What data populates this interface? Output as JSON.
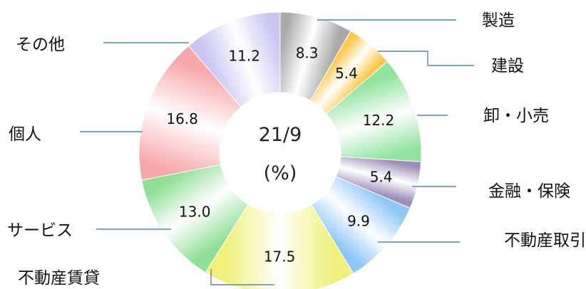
{
  "chart_data": {
    "type": "pie",
    "donut": true,
    "center_label": [
      "21/9",
      "(%)"
    ],
    "categories": [
      "製造",
      "建設",
      "卸・小売",
      "金融・保険",
      "不動産取引",
      "不動産賃貸",
      "サービス",
      "個人",
      "その他"
    ],
    "values": [
      8.3,
      5.4,
      12.2,
      5.4,
      9.9,
      17.5,
      13.0,
      16.8,
      11.2
    ],
    "value_labels": [
      "8.3",
      "5.4",
      "12.2",
      "5.4",
      "9.9",
      "17.5",
      "13.0",
      "16.8",
      "11.2"
    ],
    "colors": [
      "#a9a9a9",
      "#ffc94d",
      "#8fe39c",
      "#9c8fb8",
      "#8ec8f7",
      "#f0f07a",
      "#8fdf96",
      "#f7a9aa",
      "#c9c6f2"
    ],
    "start": "top",
    "direction": "clockwise",
    "legend": "none"
  }
}
